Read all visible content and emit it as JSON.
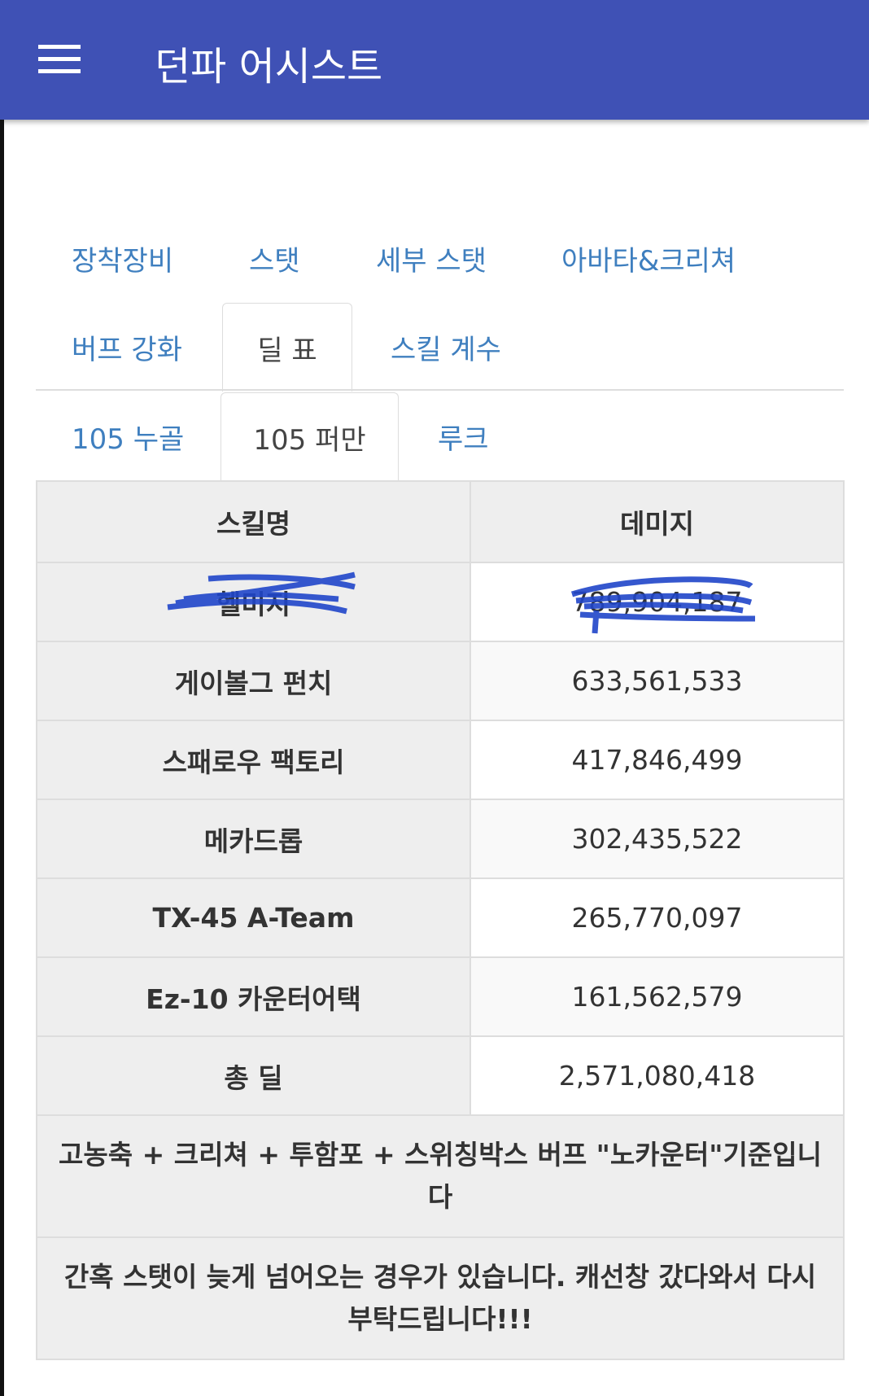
{
  "header": {
    "title": "던파 어시스트",
    "menu_icon": "hamburger-icon"
  },
  "tabs_row1": [
    "장착장비",
    "스탯",
    "세부 스탯",
    "아바타&크리쳐"
  ],
  "tabs_row2": [
    "버프 강화",
    "딜 표",
    "스킬 계수"
  ],
  "subtabs": [
    "105 누골",
    "105 퍼만",
    "루크"
  ],
  "active_tab": "딜 표",
  "active_subtab": "105 퍼만",
  "table": {
    "headers": [
      "스킬명",
      "데미지"
    ],
    "rows": [
      {
        "name": "헬미지",
        "value": "789,904,187"
      },
      {
        "name": "게이볼그 펀치",
        "value": "633,561,533"
      },
      {
        "name": "스패로우 팩토리",
        "value": "417,846,499"
      },
      {
        "name": "메카드롭",
        "value": "302,435,522"
      },
      {
        "name": "TX-45 A-Team",
        "value": "265,770,097"
      },
      {
        "name": "Ez-10 카운터어택",
        "value": "161,562,579"
      },
      {
        "name": "총 딜",
        "value": "2,571,080,418"
      }
    ],
    "notes": [
      "고농축 + 크리쳐 + 투함포 + 스위칭박스 버프 \"노카운터\"기준입니다",
      "간혹 스탯이 늦게 넘어오는 경우가 있습니다. 캐선창 갔다와서 다시 부탁드립니다!!!"
    ]
  },
  "colors": {
    "header": "#3f51b5",
    "tab_link": "#3f7fbf",
    "scribble": "#1f45c9"
  }
}
